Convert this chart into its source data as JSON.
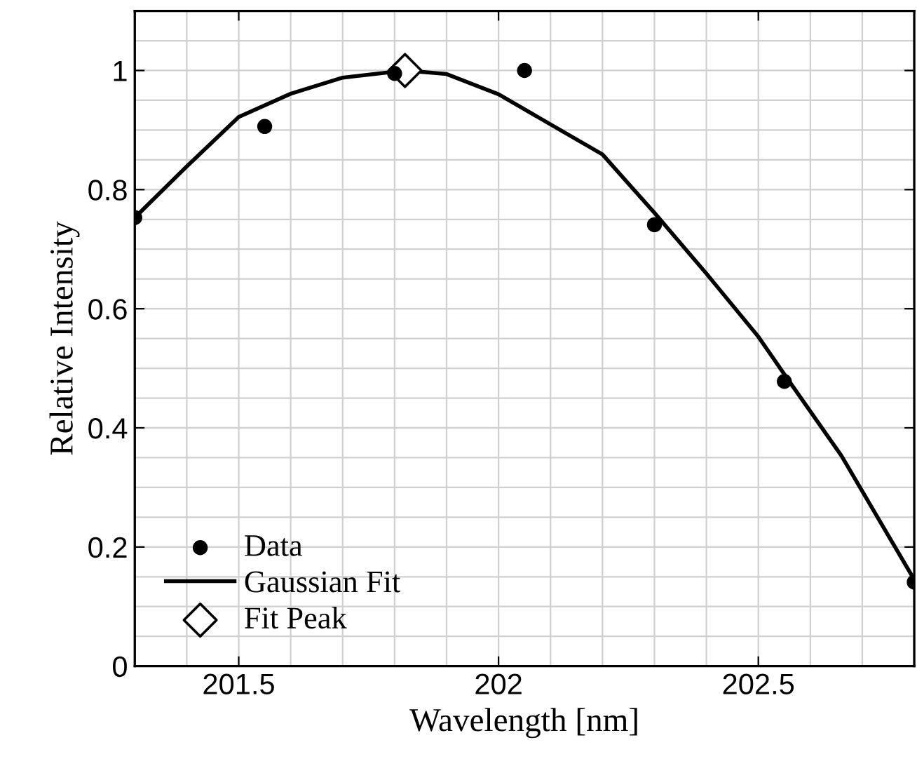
{
  "chart_data": {
    "type": "scatter",
    "xlabel": "Wavelength [nm]",
    "ylabel": "Relative Intensity",
    "xlim": [
      201.3,
      202.8
    ],
    "xticks": [
      201.5,
      202,
      202.5
    ],
    "ylim": [
      0,
      1.1
    ],
    "yticks": [
      0,
      0.2,
      0.4,
      0.6,
      0.8,
      1
    ],
    "grid": true,
    "legend": "bottom left",
    "series": [
      {
        "name": "Data",
        "color": "#000000",
        "marker": "circle",
        "x": [
          201.3,
          201.55,
          201.8,
          202.05,
          202.3,
          202.55,
          202.8
        ],
        "values": [
          0.753,
          0.906,
          0.995,
          1.0,
          0.741,
          0.478,
          0.141
        ]
      },
      {
        "name": "Gaussian Fit",
        "type": "line",
        "color": "#000000",
        "marker": "none",
        "line_style": "solid",
        "x": [
          201.3,
          201.4,
          201.5,
          201.6,
          201.7,
          201.82,
          201.9,
          202.0,
          202.2,
          202.3,
          202.4,
          202.5,
          202.55,
          202.66,
          202.8
        ],
        "values": [
          0.753,
          0.839,
          0.922,
          0.961,
          0.988,
          1.0,
          0.994,
          0.96,
          0.859,
          0.761,
          0.659,
          0.553,
          0.49,
          0.353,
          0.145
        ]
      },
      {
        "name": "Fit Peak",
        "color": "#000000",
        "marker": "diamond",
        "x": [
          201.82
        ],
        "values": [
          1.0
        ]
      }
    ]
  }
}
